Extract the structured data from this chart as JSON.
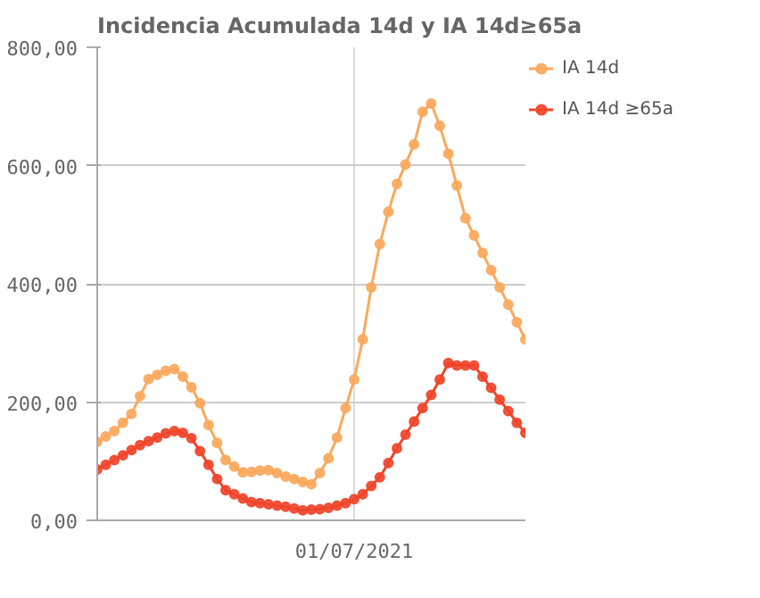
{
  "chart_data": {
    "type": "line",
    "title": "Incidencia Acumulada 14d y IA 14d≥65a",
    "categories": [
      null,
      null,
      null,
      null,
      null,
      null,
      null,
      null,
      null,
      null,
      null,
      null,
      null,
      null,
      null,
      null,
      null,
      null,
      null,
      null,
      null,
      null,
      null,
      null,
      null,
      null,
      null,
      null,
      null,
      null,
      "01/07/2021",
      null,
      null,
      null,
      null,
      null,
      null,
      null,
      null,
      null,
      null,
      null,
      null,
      null,
      null,
      null,
      null,
      null,
      null,
      null,
      null
    ],
    "ylim": [
      0,
      800
    ],
    "yticks": [
      {
        "value": 0,
        "label": "0,00"
      },
      {
        "value": 200,
        "label": "200,00"
      },
      {
        "value": 400,
        "label": "400,00"
      },
      {
        "value": 600,
        "label": "600,00"
      },
      {
        "value": 800,
        "label": "800,00"
      }
    ],
    "grid": true,
    "legend": "top right",
    "marker": "circle",
    "line_style": "solid",
    "series": [
      {
        "name": "IA 14d",
        "color": "#f9a95c",
        "values": [
          133,
          142,
          151,
          165,
          180,
          210,
          239,
          246,
          253,
          256,
          243,
          225,
          198,
          161,
          131,
          102,
          91,
          81,
          82,
          84,
          85,
          80,
          74,
          70,
          65,
          61,
          80,
          105,
          140,
          190,
          238,
          306,
          394,
          467,
          522,
          569,
          602,
          636,
          691,
          705,
          667,
          620,
          566,
          511,
          482,
          452,
          423,
          394,
          365,
          335,
          306
        ]
      },
      {
        "name": "IA 14d ≥65a",
        "color": "#f0452a",
        "values": [
          86,
          94,
          102,
          110,
          119,
          127,
          134,
          140,
          147,
          151,
          148,
          139,
          117,
          94,
          70,
          51,
          44,
          37,
          31,
          29,
          27,
          25,
          23,
          20,
          17,
          18,
          19,
          21,
          25,
          29,
          36,
          44,
          58,
          73,
          97,
          122,
          145,
          167,
          190,
          212,
          238,
          266,
          262,
          262,
          262,
          243,
          224,
          204,
          185,
          165,
          148
        ]
      }
    ]
  }
}
